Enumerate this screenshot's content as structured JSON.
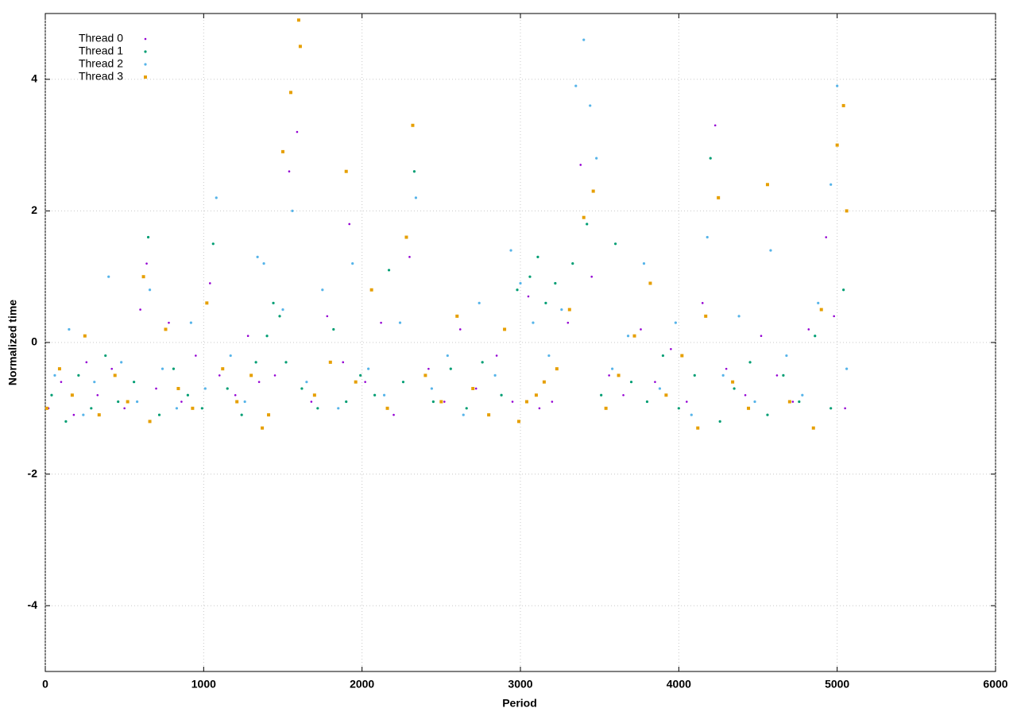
{
  "chart_data": {
    "type": "scatter",
    "x_label": "Period",
    "y_label": "Normalized time",
    "xlim": [
      0,
      6000
    ],
    "ylim": [
      -5,
      5
    ],
    "xticks": [
      0,
      1000,
      2000,
      3000,
      4000,
      5000,
      6000
    ],
    "yticks": [
      -4,
      -2,
      0,
      2,
      4
    ],
    "grid": true,
    "legend": "top-left",
    "series": [
      {
        "name": "Thread 0",
        "color": "#9400d3",
        "x": [
          20,
          100,
          180,
          260,
          330,
          420,
          500,
          600,
          640,
          700,
          780,
          860,
          950,
          1040,
          1100,
          1200,
          1280,
          1350,
          1450,
          1540,
          1590,
          1680,
          1780,
          1880,
          1920,
          2020,
          2120,
          2200,
          2300,
          2420,
          2520,
          2620,
          2720,
          2850,
          2950,
          3050,
          3120,
          3200,
          3300,
          3380,
          3450,
          3560,
          3650,
          3760,
          3850,
          3950,
          4050,
          4150,
          4230,
          4300,
          4420,
          4520,
          4620,
          4720,
          4820,
          4930,
          4980,
          5050
        ],
        "values": [
          -1.0,
          -0.6,
          -1.1,
          -0.3,
          -0.8,
          -0.4,
          -1.0,
          0.5,
          1.2,
          -0.7,
          0.3,
          -0.9,
          -0.2,
          0.9,
          -0.5,
          -0.8,
          0.1,
          -0.6,
          -0.5,
          2.6,
          3.2,
          -0.9,
          0.4,
          -0.3,
          1.8,
          -0.6,
          0.3,
          -1.1,
          1.3,
          -0.4,
          -0.9,
          0.2,
          -0.7,
          -0.2,
          -0.9,
          0.7,
          -1.0,
          -0.9,
          0.3,
          2.7,
          1.0,
          -0.5,
          -0.8,
          0.2,
          -0.6,
          -0.1,
          -0.9,
          0.6,
          3.3,
          -0.4,
          -0.8,
          0.1,
          -0.5,
          -0.9,
          0.2,
          1.6,
          0.4,
          -1.0
        ]
      },
      {
        "name": "Thread 1",
        "color": "#009e73",
        "x": [
          40,
          130,
          210,
          290,
          380,
          460,
          560,
          650,
          720,
          810,
          900,
          990,
          1060,
          1150,
          1240,
          1330,
          1400,
          1440,
          1480,
          1520,
          1620,
          1720,
          1820,
          1900,
          1990,
          2080,
          2170,
          2260,
          2330,
          2450,
          2560,
          2660,
          2760,
          2880,
          2980,
          3060,
          3110,
          3160,
          3220,
          3330,
          3420,
          3510,
          3600,
          3700,
          3800,
          3900,
          4000,
          4100,
          4200,
          4260,
          4350,
          4450,
          4560,
          4660,
          4760,
          4860,
          4960,
          5040
        ],
        "values": [
          -0.8,
          -1.2,
          -0.5,
          -1.0,
          -0.2,
          -0.9,
          -0.6,
          1.6,
          -1.1,
          -0.4,
          -0.8,
          -1.0,
          1.5,
          -0.7,
          -1.1,
          -0.3,
          0.1,
          0.6,
          0.4,
          -0.3,
          -0.7,
          -1.0,
          0.2,
          -0.9,
          -0.5,
          -0.8,
          1.1,
          -0.6,
          2.6,
          -0.9,
          -0.4,
          -1.0,
          -0.3,
          -0.8,
          0.8,
          1.0,
          1.3,
          0.6,
          0.9,
          1.2,
          1.8,
          -0.8,
          1.5,
          -0.6,
          -0.9,
          -0.2,
          -1.0,
          -0.5,
          2.8,
          -1.2,
          -0.7,
          -0.3,
          -1.1,
          -0.5,
          -0.9,
          0.1,
          -1.0,
          0.8
        ]
      },
      {
        "name": "Thread 2",
        "color": "#56b4e9",
        "x": [
          60,
          150,
          240,
          310,
          400,
          480,
          580,
          660,
          740,
          830,
          920,
          1010,
          1080,
          1170,
          1260,
          1340,
          1380,
          1500,
          1560,
          1650,
          1750,
          1850,
          1940,
          2040,
          2140,
          2240,
          2340,
          2440,
          2540,
          2640,
          2740,
          2840,
          2940,
          3000,
          3080,
          3180,
          3260,
          3350,
          3400,
          3440,
          3480,
          3580,
          3680,
          3780,
          3880,
          3980,
          4080,
          4180,
          4280,
          4380,
          4480,
          4580,
          4680,
          4780,
          4880,
          4960,
          5000,
          5060
        ],
        "values": [
          -0.5,
          0.2,
          -1.1,
          -0.6,
          1.0,
          -0.3,
          -0.9,
          0.8,
          -0.4,
          -1.0,
          0.3,
          -0.7,
          2.2,
          -0.2,
          -0.9,
          1.3,
          1.2,
          0.5,
          2.0,
          -0.6,
          0.8,
          -1.0,
          1.2,
          -0.4,
          -0.8,
          0.3,
          2.2,
          -0.7,
          -0.2,
          -1.1,
          0.6,
          -0.5,
          1.4,
          0.9,
          0.3,
          -0.2,
          0.5,
          3.9,
          4.6,
          3.6,
          2.8,
          -0.4,
          0.1,
          1.2,
          -0.7,
          0.3,
          -1.1,
          1.6,
          -0.5,
          0.4,
          -0.9,
          1.4,
          -0.2,
          -0.8,
          0.6,
          2.4,
          3.9,
          -0.4
        ]
      },
      {
        "name": "Thread 3",
        "color": "#e69f00",
        "x": [
          10,
          90,
          170,
          250,
          340,
          440,
          520,
          620,
          660,
          760,
          840,
          930,
          1020,
          1120,
          1210,
          1300,
          1370,
          1410,
          1500,
          1550,
          1600,
          1610,
          1700,
          1800,
          1900,
          1960,
          2060,
          2160,
          2280,
          2320,
          2400,
          2500,
          2600,
          2700,
          2800,
          2900,
          2990,
          3040,
          3100,
          3150,
          3230,
          3310,
          3400,
          3460,
          3540,
          3620,
          3720,
          3820,
          3920,
          4020,
          4120,
          4170,
          4250,
          4340,
          4440,
          4560,
          4700,
          4850,
          4900,
          5000,
          5040,
          5060
        ],
        "values": [
          -1.0,
          -0.4,
          -0.8,
          0.1,
          -1.1,
          -0.5,
          -0.9,
          1.0,
          -1.2,
          0.2,
          -0.7,
          -1.0,
          0.6,
          -0.4,
          -0.9,
          -0.5,
          -1.3,
          -1.1,
          2.9,
          3.8,
          4.9,
          4.5,
          -0.8,
          -0.3,
          2.6,
          -0.6,
          0.8,
          -1.0,
          1.6,
          3.3,
          -0.5,
          -0.9,
          0.4,
          -0.7,
          -1.1,
          0.2,
          -1.2,
          -0.9,
          -0.8,
          -0.6,
          -0.4,
          0.5,
          1.9,
          2.3,
          -1.0,
          -0.5,
          0.1,
          0.9,
          -0.8,
          -0.2,
          -1.3,
          0.4,
          2.2,
          -0.6,
          -1.0,
          2.4,
          -0.9,
          -1.3,
          0.5,
          3.0,
          3.6,
          2.0
        ]
      }
    ]
  }
}
